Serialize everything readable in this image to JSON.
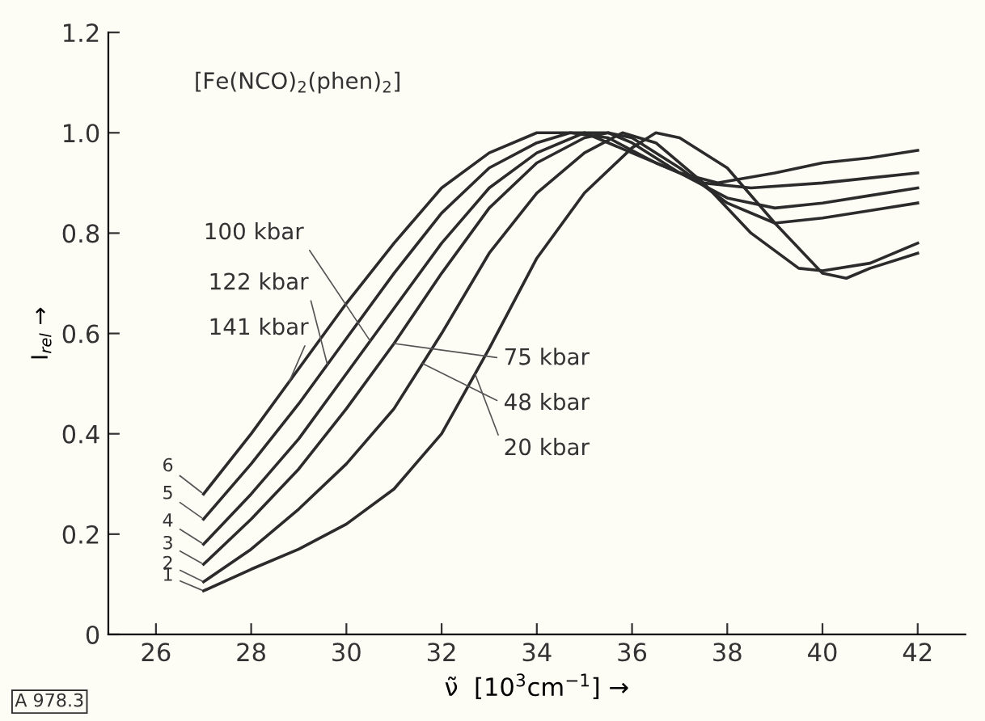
{
  "chart_data": {
    "type": "line",
    "ylabel": "I$_{rel}$ →",
    "xlabel": "ν̃  [10$^{3}$cm$^{−1}$] →",
    "xlim": [
      25,
      43
    ],
    "xticks": [
      26,
      28,
      30,
      32,
      34,
      36,
      38,
      40,
      42
    ],
    "ylim": [
      0,
      1.2
    ],
    "yticks": [
      0,
      0.2,
      0.4,
      0.6,
      0.8,
      {
        "value": 1.0,
        "label": "1.0"
      },
      1.2
    ],
    "grid": false,
    "legend": false,
    "marker": "none",
    "line_style": "solid",
    "annotations": [
      "[Fe(NCO)$_{2}$(phen)$_{2}$]",
      "A 978.3",
      {
        "text": "100 kbar",
        "x": 30.5,
        "y": 0.585
      },
      {
        "text": "122 kbar",
        "x": 29.6,
        "y": 0.538
      },
      {
        "text": "141 kbar",
        "x": 28.8,
        "y": 0.504
      },
      {
        "text": "75 kbar",
        "x": 31.0,
        "y": 0.58
      },
      {
        "text": "48 kbar",
        "x": 31.6,
        "y": 0.54
      },
      {
        "text": "20 kbar",
        "x": 32.7,
        "y": 0.52
      }
    ],
    "series": [
      {
        "name": "1",
        "color": "#2b2b2b",
        "x": [
          27,
          28,
          29,
          30,
          31,
          32,
          33,
          34,
          35,
          36,
          36.5,
          37,
          38,
          39,
          40,
          40.5,
          41,
          42
        ],
        "values": [
          0.087,
          0.13,
          0.17,
          0.22,
          0.29,
          0.4,
          0.57,
          0.75,
          0.88,
          0.97,
          1.0,
          0.99,
          0.93,
          0.82,
          0.72,
          0.71,
          0.73,
          0.76
        ]
      },
      {
        "name": "2",
        "color": "#2b2b2b",
        "x": [
          27,
          28,
          29,
          30,
          31,
          32,
          33,
          34,
          35,
          35.8,
          36.5,
          37.5,
          38.5,
          39.5,
          40,
          41,
          42
        ],
        "values": [
          0.105,
          0.17,
          0.25,
          0.34,
          0.45,
          0.6,
          0.76,
          0.88,
          0.96,
          1.0,
          0.98,
          0.9,
          0.8,
          0.73,
          0.725,
          0.74,
          0.78
        ]
      },
      {
        "name": "3",
        "color": "#2b2b2b",
        "x": [
          27,
          28,
          29,
          30,
          31,
          32,
          33,
          34,
          35,
          35.5,
          36,
          37,
          38,
          39,
          40,
          41,
          42
        ],
        "values": [
          0.14,
          0.23,
          0.33,
          0.45,
          0.58,
          0.72,
          0.85,
          0.94,
          0.99,
          1.0,
          0.99,
          0.93,
          0.86,
          0.82,
          0.83,
          0.845,
          0.86
        ]
      },
      {
        "name": "4",
        "color": "#2b2b2b",
        "x": [
          27,
          28,
          29,
          30,
          31,
          32,
          33,
          34,
          35,
          35.5,
          36,
          37,
          38,
          39,
          40,
          41,
          42
        ],
        "values": [
          0.18,
          0.28,
          0.39,
          0.52,
          0.65,
          0.78,
          0.89,
          0.96,
          1.0,
          1.0,
          0.98,
          0.92,
          0.87,
          0.85,
          0.86,
          0.875,
          0.89
        ]
      },
      {
        "name": "5",
        "color": "#2b2b2b",
        "x": [
          27,
          28,
          29,
          30,
          31,
          32,
          33,
          34,
          34.7,
          35.5,
          36.5,
          37.5,
          38.5,
          40,
          41,
          42
        ],
        "values": [
          0.23,
          0.34,
          0.46,
          0.59,
          0.72,
          0.84,
          0.93,
          0.98,
          1.0,
          0.99,
          0.94,
          0.9,
          0.89,
          0.9,
          0.91,
          0.92
        ]
      },
      {
        "name": "6",
        "color": "#2b2b2b",
        "x": [
          27,
          28,
          29,
          30,
          31,
          32,
          33,
          34,
          35,
          36,
          37,
          37.8,
          39,
          40,
          41,
          42
        ],
        "values": [
          0.28,
          0.4,
          0.53,
          0.66,
          0.78,
          0.89,
          0.96,
          1.0,
          1.0,
          0.96,
          0.92,
          0.9,
          0.92,
          0.94,
          0.95,
          0.965
        ]
      }
    ]
  }
}
